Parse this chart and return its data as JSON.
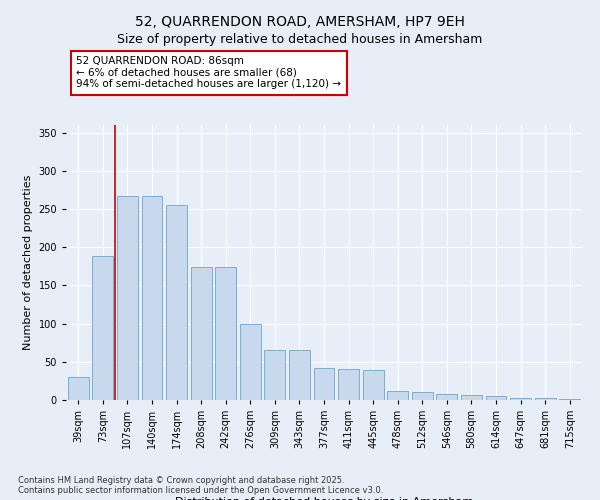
{
  "title1": "52, QUARRENDON ROAD, AMERSHAM, HP7 9EH",
  "title2": "Size of property relative to detached houses in Amersham",
  "xlabel": "Distribution of detached houses by size in Amersham",
  "ylabel": "Number of detached properties",
  "categories": [
    "39sqm",
    "73sqm",
    "107sqm",
    "140sqm",
    "174sqm",
    "208sqm",
    "242sqm",
    "276sqm",
    "309sqm",
    "343sqm",
    "377sqm",
    "411sqm",
    "445sqm",
    "478sqm",
    "512sqm",
    "546sqm",
    "580sqm",
    "614sqm",
    "647sqm",
    "681sqm",
    "715sqm"
  ],
  "values": [
    30,
    188,
    267,
    267,
    255,
    174,
    174,
    100,
    65,
    65,
    42,
    40,
    39,
    12,
    10,
    8,
    7,
    5,
    3,
    3,
    1
  ],
  "bar_color": "#c9d9ed",
  "bar_edge_color": "#7aaed6",
  "vline_x": 1.5,
  "vline_color": "#cc0000",
  "annotation_text": "52 QUARRENDON ROAD: 86sqm\n← 6% of detached houses are smaller (68)\n94% of semi-detached houses are larger (1,120) →",
  "annotation_box_color": "#ffffff",
  "annotation_box_edge": "#cc0000",
  "ylim": [
    0,
    360
  ],
  "yticks": [
    0,
    50,
    100,
    150,
    200,
    250,
    300,
    350
  ],
  "bg_color": "#e8eef8",
  "plot_bg_color": "#e8eef8",
  "footer1": "Contains HM Land Registry data © Crown copyright and database right 2025.",
  "footer2": "Contains public sector information licensed under the Open Government Licence v3.0.",
  "title_fontsize": 10,
  "subtitle_fontsize": 9,
  "tick_fontsize": 7,
  "label_fontsize": 8,
  "annotation_fontsize": 7.5,
  "footer_fontsize": 6
}
